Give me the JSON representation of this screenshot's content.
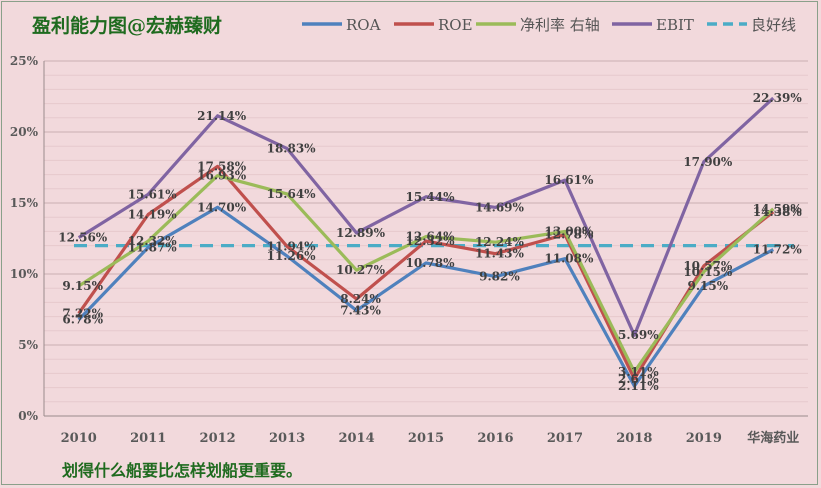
{
  "chart_data": {
    "type": "line",
    "title": "盈利能力图@宏赫臻财",
    "categories": [
      "2010",
      "2011",
      "2012",
      "2013",
      "2014",
      "2015",
      "2016",
      "2017",
      "2018",
      "2019",
      "华海药业"
    ],
    "ylim": [
      0,
      25
    ],
    "yticks": [
      "0%",
      "5%",
      "10%",
      "15%",
      "20%",
      "25%"
    ],
    "grid": true,
    "legend_position": "top",
    "series": [
      {
        "name": "ROA",
        "color": "#4f81bd",
        "values": [
          6.78,
          11.87,
          14.7,
          11.26,
          7.43,
          10.78,
          9.82,
          11.08,
          2.11,
          9.15,
          11.72
        ],
        "labels": [
          "6.78%",
          "11.87%",
          "14.70%",
          "11.26%",
          "7.43%",
          "10.78%",
          "9.82%",
          "11.08%",
          "2.11%",
          "9.15%",
          "11.72%"
        ]
      },
      {
        "name": "ROE",
        "color": "#c0504d",
        "values": [
          7.22,
          14.19,
          17.58,
          11.94,
          8.24,
          12.32,
          11.43,
          12.78,
          2.61,
          10.57,
          14.38
        ],
        "labels": [
          "7.22%",
          "14.19%",
          "17.58%",
          "11.94%",
          "8.24%",
          "12.32%",
          "11.43%",
          "12.78%",
          "2.61%",
          "10.57%",
          "14.38%"
        ]
      },
      {
        "name": "净利率 右轴",
        "color": "#9bbb59",
        "values": [
          9.15,
          12.32,
          16.93,
          15.64,
          10.27,
          12.64,
          12.24,
          13.0,
          3.11,
          10.15,
          14.59
        ],
        "labels": [
          "9.15%",
          "12.32%",
          "16.93%",
          "15.64%",
          "10.27%",
          "12.64%",
          "12.24%",
          "13.00%",
          "3.11%",
          "10.15%",
          "14.59%"
        ]
      },
      {
        "name": "EBIT",
        "color": "#8064a2",
        "values": [
          12.56,
          15.61,
          21.14,
          18.83,
          12.89,
          15.44,
          14.69,
          16.61,
          5.69,
          17.9,
          22.39
        ],
        "labels": [
          "12.56%",
          "15.61%",
          "21.14%",
          "18.83%",
          "12.89%",
          "15.44%",
          "14.69%",
          "16.61%",
          "5.69%",
          "17.90%",
          "22.39%"
        ]
      },
      {
        "name": "良好线",
        "color": "#4bacc6",
        "dashed": true,
        "values": [
          12,
          12,
          12,
          12,
          12,
          12,
          12,
          12,
          12,
          12,
          12
        ]
      }
    ],
    "footer_note": "划得什么船要比怎样划船更重要。"
  }
}
